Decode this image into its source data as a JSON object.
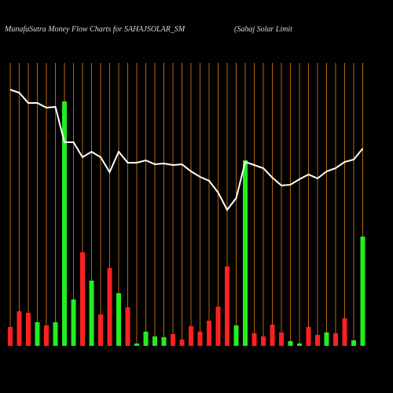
{
  "chart_data": {
    "type": "bar",
    "title": "MunafaSutra  Money Flow  Charts for SAHAJSOLAR_SM",
    "subtitle": "(Sahaj Solar Limit",
    "ylim": [
      0,
      440
    ],
    "guide_color": "#b8660b",
    "series": [
      {
        "type": "bar",
        "values": [
          24,
          44,
          42,
          30,
          26,
          30,
          311,
          59,
          119,
          83,
          40,
          99,
          67,
          49,
          3,
          18,
          12,
          11,
          15,
          8,
          25,
          18,
          32,
          50,
          101,
          26,
          236,
          16,
          12,
          27,
          17,
          6,
          3,
          24,
          14,
          17,
          16,
          35,
          7,
          139
        ],
        "colors": [
          "#ff2020",
          "#ff2020",
          "#ff2020",
          "#22ee22",
          "#ff2020",
          "#22ee22",
          "#22ee22",
          "#22ee22",
          "#ff2020",
          "#22ee22",
          "#ff2020",
          "#ff2020",
          "#22ee22",
          "#ff2020",
          "#22ee22",
          "#22ee22",
          "#22ee22",
          "#22ee22",
          "#ff2020",
          "#ff2020",
          "#ff2020",
          "#ff2020",
          "#ff2020",
          "#ff2020",
          "#ff2020",
          "#22ee22",
          "#22ee22",
          "#ff2020",
          "#ff2020",
          "#ff2020",
          "#ff2020",
          "#22ee22",
          "#22ee22",
          "#ff2020",
          "#ff2020",
          "#22ee22",
          "#ff2020",
          "#ff2020",
          "#22ee22",
          "#22ee22"
        ]
      },
      {
        "type": "line",
        "color": "#ffffff",
        "values": [
          326,
          322,
          309,
          309,
          303,
          304,
          259,
          259,
          240,
          247,
          240,
          221,
          247,
          233,
          233,
          236,
          231,
          232,
          230,
          231,
          222,
          215,
          210,
          195,
          173,
          188,
          234,
          230,
          226,
          214,
          204,
          205,
          212,
          218,
          213,
          222,
          226,
          234,
          237,
          251
        ]
      }
    ]
  }
}
